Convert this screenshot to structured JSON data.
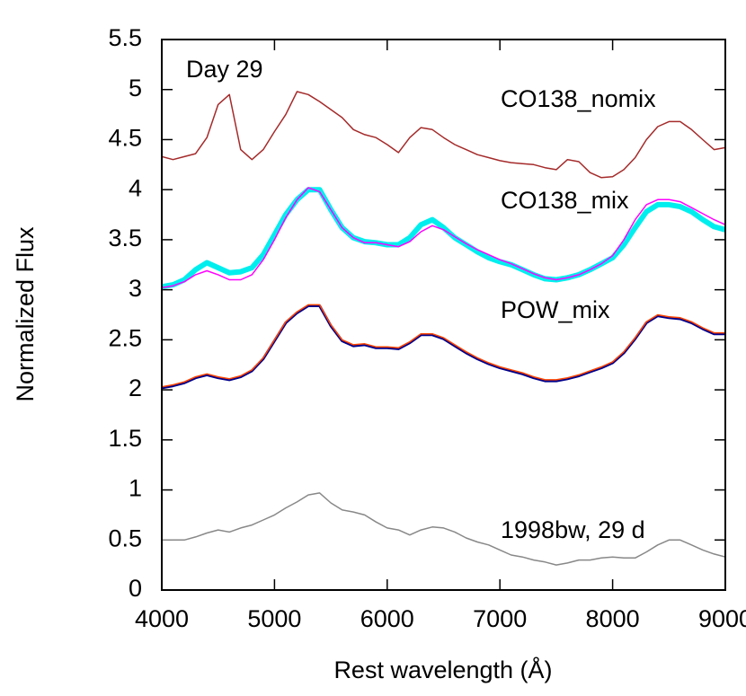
{
  "chart_data": {
    "type": "line",
    "annotations": [
      "Day 29"
    ],
    "xlabel": "Rest wavelength (Å)",
    "ylabel": "Normalized Flux",
    "xlim": [
      4000,
      9000
    ],
    "xticks": [
      4000,
      5000,
      6000,
      7000,
      8000,
      9000
    ],
    "ylim": [
      0,
      5.5
    ],
    "yticks": [
      0,
      0.5,
      1,
      1.5,
      2,
      2.5,
      3,
      3.5,
      4,
      4.5,
      5,
      5.5
    ],
    "x": [
      4000,
      4100,
      4200,
      4300,
      4400,
      4500,
      4600,
      4700,
      4800,
      4900,
      5000,
      5100,
      5200,
      5300,
      5400,
      5500,
      5600,
      5700,
      5800,
      5900,
      6000,
      6100,
      6200,
      6300,
      6400,
      6500,
      6600,
      6700,
      6800,
      6900,
      7000,
      7100,
      7200,
      7300,
      7400,
      7500,
      7600,
      7700,
      7800,
      7900,
      8000,
      8100,
      8200,
      8300,
      8400,
      8500,
      8600,
      8700,
      8800,
      8900,
      9000
    ],
    "series": [
      {
        "name": "CO138_nomix",
        "color": "#a52a2a",
        "values": [
          4.33,
          4.3,
          4.33,
          4.36,
          4.52,
          4.85,
          4.95,
          4.4,
          4.3,
          4.4,
          4.58,
          4.75,
          4.98,
          4.95,
          4.88,
          4.8,
          4.72,
          4.6,
          4.55,
          4.52,
          4.45,
          4.37,
          4.52,
          4.62,
          4.6,
          4.52,
          4.45,
          4.4,
          4.35,
          4.32,
          4.29,
          4.27,
          4.26,
          4.25,
          4.22,
          4.2,
          4.3,
          4.28,
          4.17,
          4.12,
          4.13,
          4.2,
          4.32,
          4.5,
          4.63,
          4.68,
          4.68,
          4.6,
          4.5,
          4.4,
          4.42
        ]
      },
      {
        "name": "CO138_mix",
        "color": "#00eeee",
        "values": [
          3.03,
          3.05,
          3.1,
          3.2,
          3.27,
          3.22,
          3.17,
          3.18,
          3.22,
          3.35,
          3.55,
          3.75,
          3.9,
          4.0,
          4.0,
          3.8,
          3.62,
          3.52,
          3.48,
          3.47,
          3.45,
          3.45,
          3.52,
          3.65,
          3.7,
          3.62,
          3.52,
          3.45,
          3.38,
          3.32,
          3.28,
          3.25,
          3.2,
          3.15,
          3.11,
          3.1,
          3.12,
          3.15,
          3.2,
          3.26,
          3.32,
          3.45,
          3.62,
          3.78,
          3.85,
          3.85,
          3.83,
          3.78,
          3.7,
          3.63,
          3.6
        ]
      },
      {
        "color": "#ff00ff",
        "values": [
          3.02,
          3.04,
          3.08,
          3.15,
          3.19,
          3.15,
          3.1,
          3.1,
          3.15,
          3.3,
          3.5,
          3.72,
          3.9,
          4.02,
          3.98,
          3.8,
          3.62,
          3.52,
          3.47,
          3.47,
          3.45,
          3.43,
          3.48,
          3.58,
          3.64,
          3.6,
          3.53,
          3.46,
          3.4,
          3.35,
          3.3,
          3.26,
          3.21,
          3.16,
          3.12,
          3.1,
          3.12,
          3.15,
          3.2,
          3.26,
          3.34,
          3.5,
          3.7,
          3.85,
          3.9,
          3.9,
          3.88,
          3.82,
          3.76,
          3.7,
          3.65
        ]
      },
      {
        "name": "POW_mix",
        "color": "#00008b",
        "values": [
          2.02,
          2.04,
          2.07,
          2.12,
          2.15,
          2.12,
          2.1,
          2.13,
          2.19,
          2.31,
          2.49,
          2.67,
          2.77,
          2.84,
          2.84,
          2.64,
          2.49,
          2.44,
          2.45,
          2.42,
          2.42,
          2.41,
          2.47,
          2.55,
          2.55,
          2.51,
          2.44,
          2.37,
          2.31,
          2.26,
          2.22,
          2.19,
          2.16,
          2.12,
          2.09,
          2.09,
          2.11,
          2.14,
          2.18,
          2.22,
          2.27,
          2.37,
          2.51,
          2.67,
          2.74,
          2.72,
          2.71,
          2.67,
          2.61,
          2.56,
          2.56
        ]
      },
      {
        "color": "#ff4500",
        "values": [
          2.03,
          2.05,
          2.08,
          2.13,
          2.16,
          2.13,
          2.11,
          2.14,
          2.2,
          2.32,
          2.5,
          2.68,
          2.78,
          2.85,
          2.85,
          2.65,
          2.5,
          2.45,
          2.46,
          2.43,
          2.43,
          2.42,
          2.48,
          2.56,
          2.56,
          2.52,
          2.45,
          2.38,
          2.32,
          2.27,
          2.23,
          2.2,
          2.17,
          2.13,
          2.1,
          2.1,
          2.12,
          2.15,
          2.19,
          2.23,
          2.28,
          2.38,
          2.52,
          2.68,
          2.75,
          2.73,
          2.72,
          2.68,
          2.62,
          2.57,
          2.57
        ]
      },
      {
        "name": "1998bw, 29 d",
        "color": "#888888",
        "values": [
          0.5,
          0.5,
          0.5,
          0.53,
          0.57,
          0.6,
          0.58,
          0.62,
          0.65,
          0.7,
          0.75,
          0.82,
          0.88,
          0.95,
          0.97,
          0.87,
          0.8,
          0.78,
          0.75,
          0.68,
          0.62,
          0.6,
          0.55,
          0.6,
          0.63,
          0.62,
          0.58,
          0.52,
          0.48,
          0.45,
          0.4,
          0.35,
          0.33,
          0.3,
          0.28,
          0.25,
          0.27,
          0.3,
          0.3,
          0.32,
          0.33,
          0.32,
          0.32,
          0.38,
          0.45,
          0.5,
          0.5,
          0.45,
          0.4,
          0.36,
          0.33
        ]
      }
    ]
  }
}
